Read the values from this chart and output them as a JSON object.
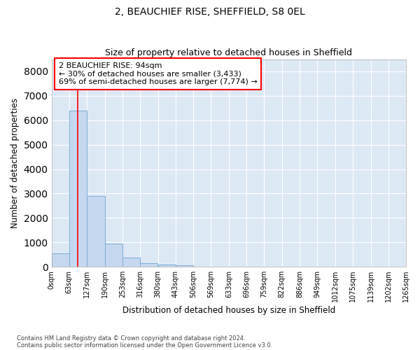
{
  "title1": "2, BEAUCHIEF RISE, SHEFFIELD, S8 0EL",
  "title2": "Size of property relative to detached houses in Sheffield",
  "xlabel": "Distribution of detached houses by size in Sheffield",
  "ylabel": "Number of detached properties",
  "bar_color": "#c5d8ef",
  "bar_edge_color": "#7aadd4",
  "background_color": "#dde8f5",
  "grid_color": "#ffffff",
  "annotation_text": "2 BEAUCHIEF RISE: 94sqm\n← 30% of detached houses are smaller (3,433)\n69% of semi-detached houses are larger (7,774) →",
  "property_line_x": 94,
  "bin_edges": [
    0,
    63,
    127,
    190,
    253,
    316,
    380,
    443,
    506,
    569,
    633,
    696,
    759,
    822,
    886,
    949,
    1012,
    1075,
    1139,
    1202,
    1265
  ],
  "bin_labels": [
    "0sqm",
    "63sqm",
    "127sqm",
    "190sqm",
    "253sqm",
    "316sqm",
    "380sqm",
    "443sqm",
    "506sqm",
    "569sqm",
    "633sqm",
    "696sqm",
    "759sqm",
    "822sqm",
    "886sqm",
    "949sqm",
    "1012sqm",
    "1075sqm",
    "1139sqm",
    "1202sqm",
    "1265sqm"
  ],
  "bar_values": [
    560,
    6400,
    2900,
    960,
    370,
    160,
    80,
    60,
    0,
    0,
    0,
    0,
    0,
    0,
    0,
    0,
    0,
    0,
    0,
    0
  ],
  "ylim": [
    0,
    8500
  ],
  "yticks": [
    0,
    1000,
    2000,
    3000,
    4000,
    5000,
    6000,
    7000,
    8000
  ],
  "footer1": "Contains HM Land Registry data © Crown copyright and database right 2024.",
  "footer2": "Contains public sector information licensed under the Open Government Licence v3.0."
}
